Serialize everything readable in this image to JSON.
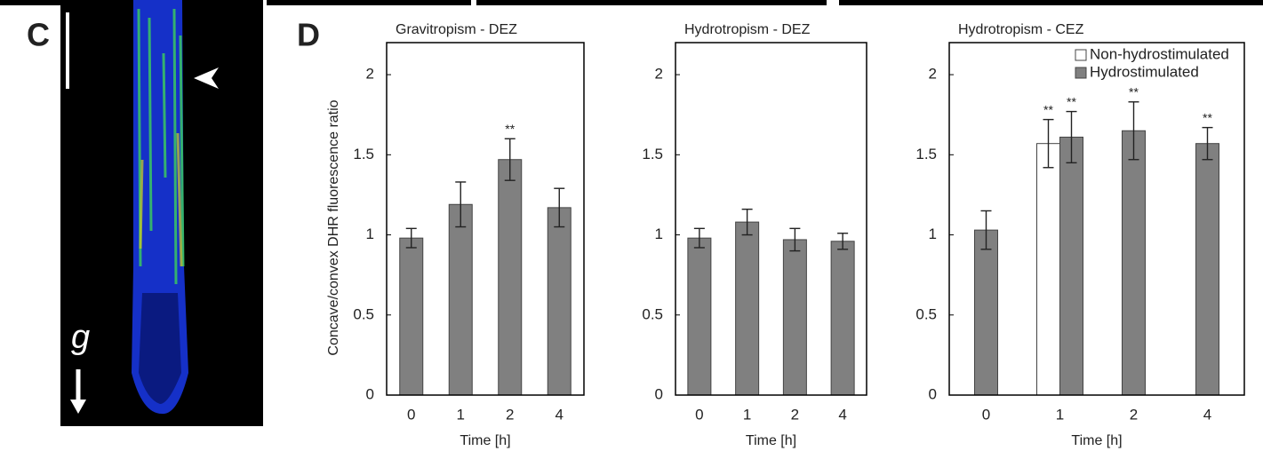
{
  "panel_labels": [
    "C",
    "D"
  ],
  "gravity_symbol": "g",
  "chart_data": [
    {
      "type": "bar",
      "title": "Gravitropism - DEZ",
      "categories": [
        "0",
        "1",
        "2",
        "4"
      ],
      "values": [
        0.98,
        1.19,
        1.47,
        1.17
      ],
      "errors": [
        0.06,
        0.14,
        0.13,
        0.12
      ],
      "significance": [
        null,
        null,
        "**",
        null
      ],
      "color": "#808080",
      "ylabel": "Concave/convex  DHR fluorescence  ratio",
      "xlabel": "Time [h]",
      "ylim": [
        0,
        2.2
      ],
      "yticks": [
        0,
        0.5,
        1,
        1.5,
        2
      ]
    },
    {
      "type": "bar",
      "title": "Hydrotropism - DEZ",
      "categories": [
        "0",
        "1",
        "2",
        "4"
      ],
      "values": [
        0.98,
        1.08,
        0.97,
        0.96
      ],
      "errors": [
        0.06,
        0.08,
        0.07,
        0.05
      ],
      "color": "#808080",
      "xlabel": "Time [h]",
      "ylim": [
        0,
        2.2
      ],
      "yticks": [
        0,
        0.5,
        1,
        1.5,
        2
      ]
    },
    {
      "type": "bar",
      "title": "Hydrotropism - CEZ",
      "categories": [
        "0",
        "1",
        "2",
        "4"
      ],
      "series": [
        {
          "name": "Non-hydrostimulated",
          "color": "#ffffff",
          "values": [
            null,
            1.57,
            null,
            null
          ],
          "errors": [
            null,
            0.15,
            null,
            null
          ],
          "significance": [
            null,
            "**",
            null,
            null
          ]
        },
        {
          "name": "Hydrostimulated",
          "color": "#808080",
          "values": [
            1.03,
            1.61,
            1.65,
            1.57
          ],
          "errors": [
            0.12,
            0.16,
            0.18,
            0.1
          ],
          "significance": [
            null,
            "**",
            "**",
            "**"
          ]
        }
      ],
      "legend": "upper right",
      "xlabel": "Time [h]",
      "ylim": [
        0,
        2.2
      ],
      "yticks": [
        0,
        0.5,
        1,
        1.5,
        2
      ]
    }
  ]
}
